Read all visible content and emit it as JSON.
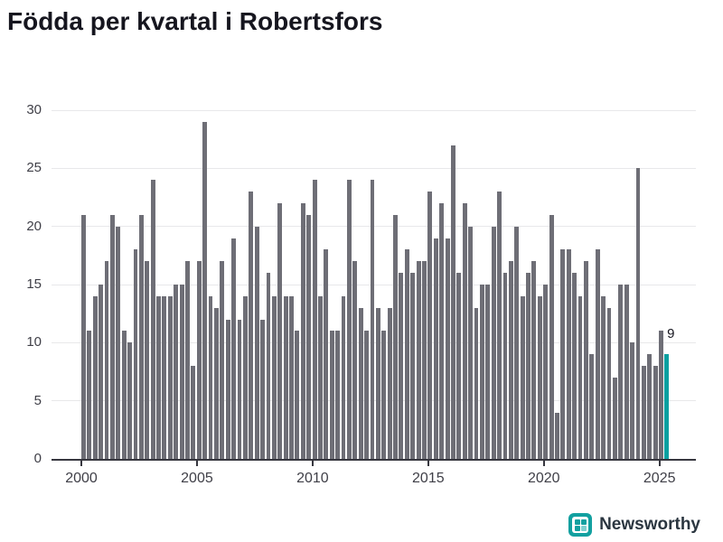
{
  "title": "Födda per kvartal i Robertsfors",
  "footer": {
    "brand": "Newsworthy"
  },
  "colors": {
    "bar": "#6e6e76",
    "highlight": "#0aa0a0",
    "gridline": "#e8e8ea",
    "axis": "#37373f",
    "axis_text": "#3f3f47",
    "title_text": "#16161f"
  },
  "annotation": {
    "last_value_label": "9"
  },
  "chart_data": {
    "type": "bar",
    "title": "Födda per kvartal i Robertsfors",
    "xlabel": "",
    "ylabel": "",
    "ylim": [
      0,
      30
    ],
    "yticks": [
      0,
      5,
      10,
      15,
      20,
      25,
      30
    ],
    "xticks": [
      "2000",
      "2005",
      "2010",
      "2015",
      "2020",
      "2025"
    ],
    "grid": "horizontal",
    "start_period": "2000-Q1",
    "periodicity": "quarterly",
    "highlight_last": true,
    "values": [
      21,
      11,
      14,
      15,
      17,
      21,
      20,
      11,
      10,
      18,
      21,
      17,
      24,
      14,
      14,
      14,
      15,
      15,
      17,
      8,
      17,
      29,
      14,
      13,
      17,
      12,
      19,
      12,
      14,
      23,
      20,
      12,
      16,
      14,
      22,
      14,
      14,
      11,
      22,
      21,
      24,
      14,
      18,
      11,
      11,
      14,
      24,
      17,
      13,
      11,
      24,
      13,
      11,
      13,
      21,
      16,
      18,
      16,
      17,
      17,
      23,
      19,
      22,
      19,
      27,
      16,
      22,
      20,
      13,
      15,
      15,
      20,
      23,
      16,
      17,
      20,
      14,
      16,
      17,
      14,
      15,
      21,
      4,
      18,
      18,
      16,
      14,
      17,
      9,
      18,
      14,
      13,
      7,
      15,
      15,
      10,
      25,
      8,
      9,
      8,
      11,
      9
    ]
  }
}
